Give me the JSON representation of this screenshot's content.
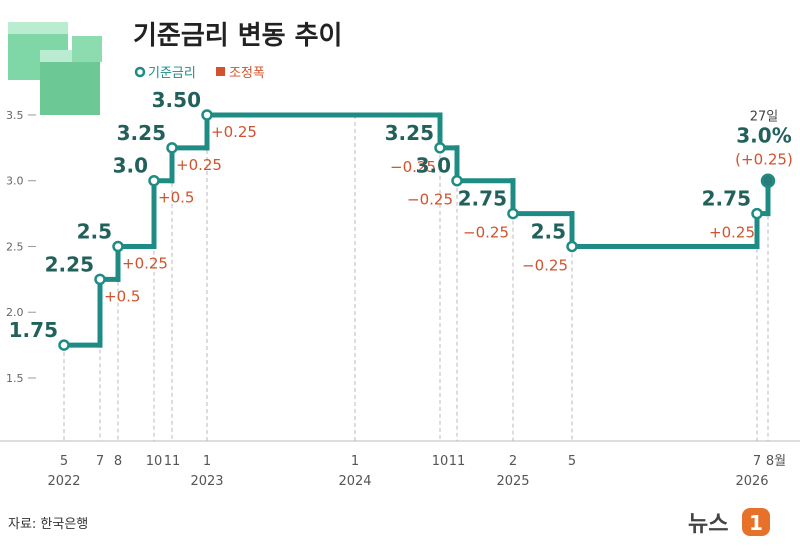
{
  "chart_data": {
    "type": "step-line",
    "title": "기준금리 변동 추이",
    "legend": [
      {
        "name": "기준금리",
        "color": "#1e8c84"
      },
      {
        "name": "조정폭",
        "color": "#d0532d"
      }
    ],
    "categories": [
      "5",
      "7",
      "8",
      "10",
      "11",
      "1",
      "1",
      "10",
      "11",
      "2",
      "5",
      "7",
      "8월"
    ],
    "years": [
      "2022",
      "2023",
      "2024",
      "2025",
      "2026"
    ],
    "series": [
      {
        "name": "기준금리",
        "color": "#1e8c84",
        "values": [
          1.75,
          2.25,
          2.5,
          3.0,
          3.25,
          3.5,
          null,
          3.25,
          3.0,
          2.75,
          2.5,
          2.75,
          3.0
        ],
        "value_labels": [
          "1.75",
          "2.25",
          "2.5",
          "3.0",
          "3.25",
          "3.50",
          null,
          "3.25",
          "3.0",
          "2.75",
          "2.5",
          "2.75",
          "3.0%"
        ]
      },
      {
        "name": "조정폭",
        "color": "#d0532d",
        "values": [
          null,
          0.5,
          0.25,
          0.5,
          0.25,
          0.25,
          null,
          -0.25,
          -0.25,
          -0.25,
          -0.25,
          0.25,
          0.25
        ],
        "value_labels": [
          null,
          "+0.5",
          "+0.25",
          "+0.5",
          "+0.25",
          "+0.25",
          null,
          "−0.25",
          "−0.25",
          "−0.25",
          "−0.25",
          "+0.25",
          "(+0.25)"
        ]
      }
    ],
    "annotation": "27일",
    "ylim": [
      1.0,
      3.8
    ],
    "yticks": [
      1.5,
      {
        "value": 2.0,
        "label": "2.0"
      },
      2.5,
      {
        "value": 3.0,
        "label": "3.0"
      },
      3.5
    ],
    "source": "자료: 한국은행",
    "brand": "뉴스",
    "brand_mark": "1"
  }
}
